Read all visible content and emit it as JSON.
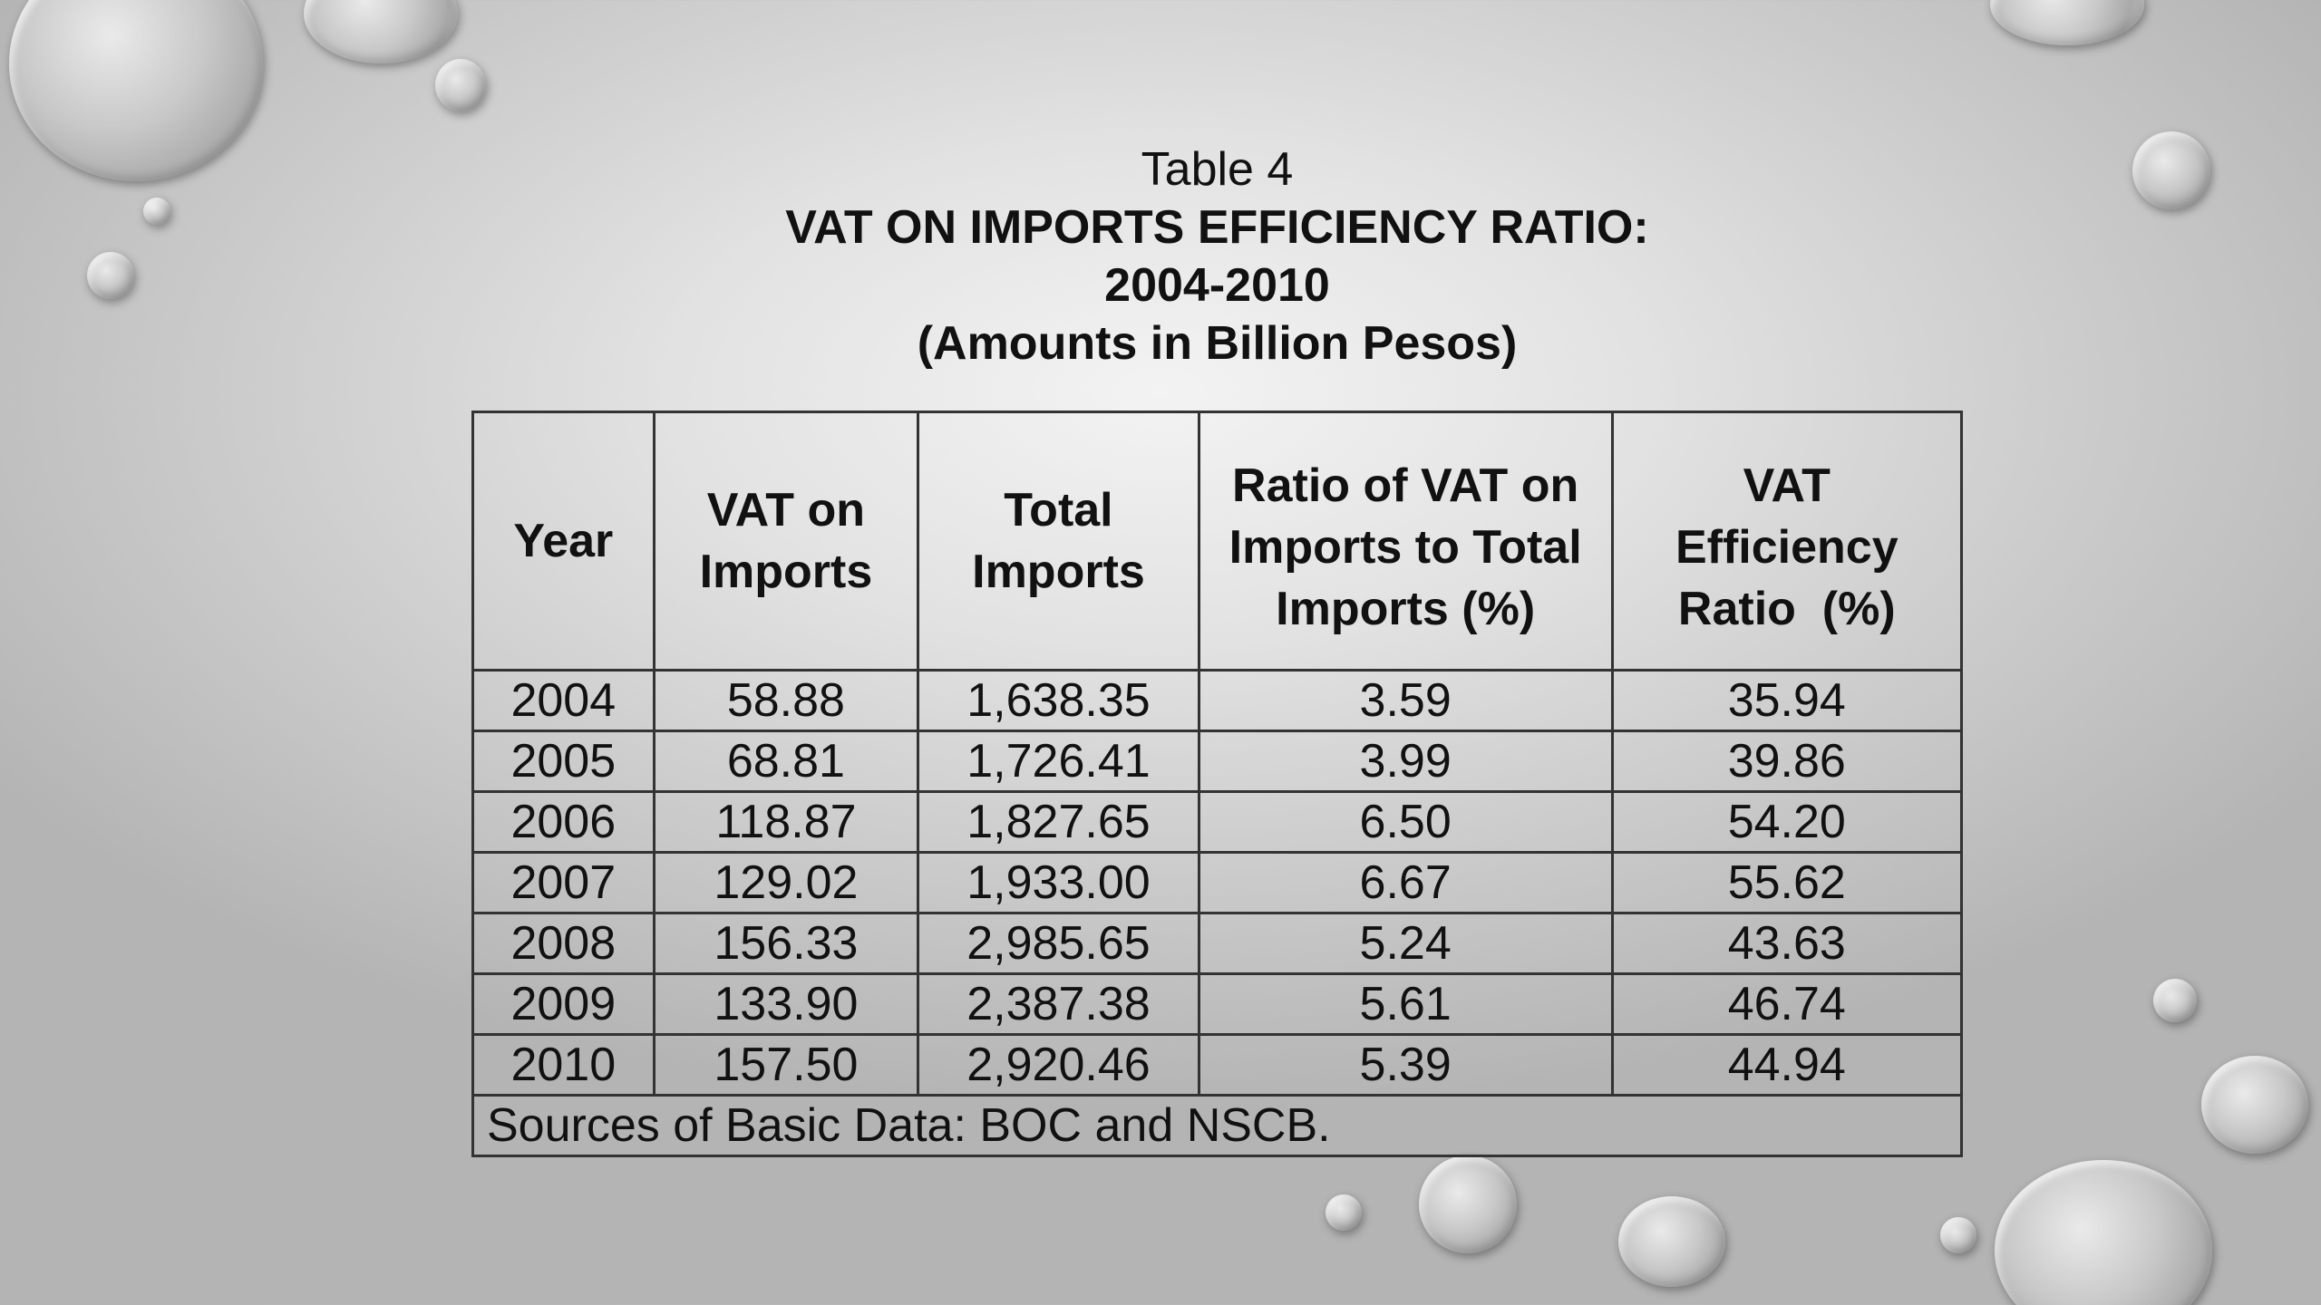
{
  "caption": {
    "label": "Table 4",
    "title": "VAT ON IMPORTS EFFICIENCY RATIO:",
    "period": "2004-2010",
    "units": "(Amounts in Billion Pesos)"
  },
  "table": {
    "headers": [
      [
        "Year"
      ],
      [
        "VAT on",
        "Imports"
      ],
      [
        "Total",
        "Imports"
      ],
      [
        "Ratio of VAT on",
        "Imports to Total",
        "Imports (%)"
      ],
      [
        "VAT",
        "Efficiency",
        "Ratio  (%)"
      ]
    ],
    "rows": [
      [
        "2004",
        "58.88",
        "1,638.35",
        "3.59",
        "35.94"
      ],
      [
        "2005",
        "68.81",
        "1,726.41",
        "3.99",
        "39.86"
      ],
      [
        "2006",
        "118.87",
        "1,827.65",
        "6.50",
        "54.20"
      ],
      [
        "2007",
        "129.02",
        "1,933.00",
        "6.67",
        "55.62"
      ],
      [
        "2008",
        "156.33",
        "2,985.65",
        "5.24",
        "43.63"
      ],
      [
        "2009",
        "133.90",
        "2,387.38",
        "5.61",
        "46.74"
      ],
      [
        "2010",
        "157.50",
        "2,920.46",
        "5.39",
        "44.94"
      ]
    ],
    "source": "Sources of Basic Data: BOC and NSCB."
  }
}
